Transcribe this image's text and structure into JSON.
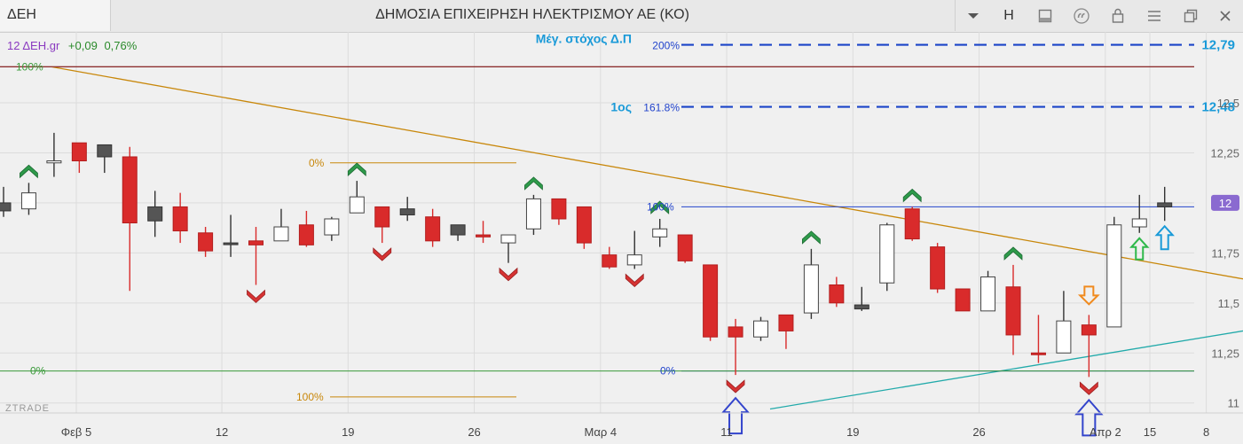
{
  "window": {
    "symbol": "ΔΕΗ",
    "title": "ΔΗΜΟΣΙΑ ΕΠΙΧΕΙΡΗΣΗ ΗΛΕΚΤΡΙΣΜΟΥ ΑΕ (ΚΟ)",
    "toolbar_letter": "H",
    "toolbar_icons": [
      "chevron-down-icon",
      "panel-icon",
      "quote-icon",
      "lock-icon",
      "menu-icon",
      "restore-icon",
      "close-icon"
    ]
  },
  "chart_header": {
    "ticker": "12 ΔΕΗ.gr",
    "change": "+0,09",
    "change_pct": "0,76%"
  },
  "watermark": "ZTRADE",
  "colors": {
    "bull_fill": "#ffffff",
    "bear": "#d92b2b",
    "neutral": "#555555",
    "trendline": "#c8870a",
    "support": "#22aaaa",
    "fib_blue": "#2244cc",
    "dashed_target": "#1a44c8",
    "target_text": "#1a9ad8",
    "fib_green": "#3a9a3a",
    "fib_orange": "#c8870a",
    "resistance": "#8a2b2b"
  },
  "chart_data": {
    "type": "candlestick",
    "ylim": [
      10.95,
      12.85
    ],
    "yticks": [
      "11",
      "11,25",
      "11,5",
      "11,75",
      "12",
      "12,25",
      "12,5"
    ],
    "last_price_label": "12",
    "last_price": 12.0,
    "xticks": [
      "Φεβ 5",
      "12",
      "19",
      "26",
      "Μαρ 4",
      "11",
      "19",
      "26",
      "Απρ 2",
      "8",
      "15"
    ],
    "candles": [
      {
        "o": 12.0,
        "h": 12.08,
        "l": 11.93,
        "c": 11.96,
        "t": "neutral"
      },
      {
        "o": 11.97,
        "h": 12.1,
        "l": 11.94,
        "c": 12.05,
        "t": "bull"
      },
      {
        "o": 12.2,
        "h": 12.35,
        "l": 12.13,
        "c": 12.21,
        "t": "bull"
      },
      {
        "o": 12.3,
        "h": 12.3,
        "l": 12.15,
        "c": 12.21,
        "t": "bear"
      },
      {
        "o": 12.29,
        "h": 12.29,
        "l": 12.15,
        "c": 12.23,
        "t": "neutral"
      },
      {
        "o": 12.23,
        "h": 12.28,
        "l": 11.56,
        "c": 11.9,
        "t": "bear"
      },
      {
        "o": 11.91,
        "h": 12.06,
        "l": 11.83,
        "c": 11.98,
        "t": "neutral"
      },
      {
        "o": 11.98,
        "h": 12.05,
        "l": 11.8,
        "c": 11.86,
        "t": "bear"
      },
      {
        "o": 11.85,
        "h": 11.88,
        "l": 11.73,
        "c": 11.76,
        "t": "bear"
      },
      {
        "o": 11.8,
        "h": 11.94,
        "l": 11.73,
        "c": 11.8,
        "t": "neutral"
      },
      {
        "o": 11.81,
        "h": 11.88,
        "l": 11.59,
        "c": 11.79,
        "t": "bear"
      },
      {
        "o": 11.81,
        "h": 11.97,
        "l": 11.81,
        "c": 11.88,
        "t": "bull"
      },
      {
        "o": 11.89,
        "h": 11.96,
        "l": 11.78,
        "c": 11.79,
        "t": "bear"
      },
      {
        "o": 11.84,
        "h": 11.93,
        "l": 11.81,
        "c": 11.92,
        "t": "bull"
      },
      {
        "o": 11.95,
        "h": 12.11,
        "l": 11.95,
        "c": 12.03,
        "t": "bull"
      },
      {
        "o": 11.98,
        "h": 11.98,
        "l": 11.8,
        "c": 11.88,
        "t": "bear"
      },
      {
        "o": 11.97,
        "h": 12.03,
        "l": 11.91,
        "c": 11.94,
        "t": "neutral"
      },
      {
        "o": 11.93,
        "h": 11.97,
        "l": 11.78,
        "c": 11.81,
        "t": "bear"
      },
      {
        "o": 11.89,
        "h": 11.89,
        "l": 11.81,
        "c": 11.84,
        "t": "neutral"
      },
      {
        "o": 11.84,
        "h": 11.91,
        "l": 11.8,
        "c": 11.83,
        "t": "bear"
      },
      {
        "o": 11.8,
        "h": 11.84,
        "l": 11.7,
        "c": 11.84,
        "t": "bull"
      },
      {
        "o": 11.87,
        "h": 12.04,
        "l": 11.84,
        "c": 12.02,
        "t": "bull"
      },
      {
        "o": 12.02,
        "h": 12.02,
        "l": 11.89,
        "c": 11.92,
        "t": "bear"
      },
      {
        "o": 11.98,
        "h": 11.98,
        "l": 11.77,
        "c": 11.8,
        "t": "bear"
      },
      {
        "o": 11.74,
        "h": 11.78,
        "l": 11.67,
        "c": 11.68,
        "t": "bear"
      },
      {
        "o": 11.69,
        "h": 11.86,
        "l": 11.67,
        "c": 11.74,
        "t": "bull"
      },
      {
        "o": 11.83,
        "h": 11.92,
        "l": 11.78,
        "c": 11.87,
        "t": "bull"
      },
      {
        "o": 11.84,
        "h": 11.84,
        "l": 11.7,
        "c": 11.71,
        "t": "bear"
      },
      {
        "o": 11.69,
        "h": 11.69,
        "l": 11.31,
        "c": 11.33,
        "t": "bear"
      },
      {
        "o": 11.38,
        "h": 11.42,
        "l": 11.14,
        "c": 11.33,
        "t": "bear"
      },
      {
        "o": 11.33,
        "h": 11.43,
        "l": 11.31,
        "c": 11.41,
        "t": "bull"
      },
      {
        "o": 11.44,
        "h": 11.44,
        "l": 11.27,
        "c": 11.36,
        "t": "bear"
      },
      {
        "o": 11.45,
        "h": 11.77,
        "l": 11.42,
        "c": 11.69,
        "t": "bull"
      },
      {
        "o": 11.59,
        "h": 11.63,
        "l": 11.48,
        "c": 11.5,
        "t": "bear"
      },
      {
        "o": 11.47,
        "h": 11.58,
        "l": 11.46,
        "c": 11.49,
        "t": "neutral"
      },
      {
        "o": 11.6,
        "h": 11.9,
        "l": 11.56,
        "c": 11.89,
        "t": "bull"
      },
      {
        "o": 11.97,
        "h": 11.98,
        "l": 11.81,
        "c": 11.82,
        "t": "bear"
      },
      {
        "o": 11.78,
        "h": 11.8,
        "l": 11.55,
        "c": 11.57,
        "t": "bear"
      },
      {
        "o": 11.57,
        "h": 11.57,
        "l": 11.46,
        "c": 11.46,
        "t": "bear"
      },
      {
        "o": 11.46,
        "h": 11.66,
        "l": 11.46,
        "c": 11.63,
        "t": "bull"
      },
      {
        "o": 11.58,
        "h": 11.69,
        "l": 11.24,
        "c": 11.34,
        "t": "bear"
      },
      {
        "o": 11.25,
        "h": 11.44,
        "l": 11.2,
        "c": 11.25,
        "t": "bear"
      },
      {
        "o": 11.25,
        "h": 11.56,
        "l": 11.25,
        "c": 11.41,
        "t": "bull"
      },
      {
        "o": 11.39,
        "h": 11.44,
        "l": 11.13,
        "c": 11.34,
        "t": "bear"
      },
      {
        "o": 11.38,
        "h": 11.93,
        "l": 11.38,
        "c": 11.89,
        "t": "bull"
      },
      {
        "o": 11.88,
        "h": 12.04,
        "l": 11.85,
        "c": 11.92,
        "t": "bull"
      },
      {
        "o": 11.98,
        "h": 12.08,
        "l": 11.91,
        "c": 12.0,
        "t": "neutral"
      }
    ],
    "lines": [
      {
        "name": "resistance",
        "from": [
          0,
          12.68
        ],
        "to": [
          51,
          12.68
        ]
      },
      {
        "name": "downtrend",
        "from": [
          2,
          12.68
        ],
        "to": [
          51,
          11.62
        ]
      },
      {
        "name": "support",
        "from": [
          34,
          10.97
        ],
        "to": [
          51,
          11.36
        ]
      },
      {
        "name": "fib-blue-100",
        "from": [
          29,
          11.98
        ],
        "to": [
          51,
          11.98
        ],
        "label": "100%"
      },
      {
        "name": "fib-blue-0",
        "from": [
          29,
          11.16
        ],
        "to": [
          51,
          11.16
        ],
        "label": "0%"
      },
      {
        "name": "fib-green-100",
        "from": [
          0,
          12.68
        ],
        "to": [
          51,
          12.68
        ],
        "label": "100%"
      },
      {
        "name": "fib-green-0",
        "from": [
          0,
          11.16
        ],
        "to": [
          51,
          11.16
        ],
        "label": "0%"
      },
      {
        "name": "fib-orange-0",
        "from": [
          14,
          12.2
        ],
        "to": [
          22,
          12.2
        ],
        "label": "0%"
      },
      {
        "name": "fib-orange-100",
        "from": [
          14,
          11.03
        ],
        "to": [
          22,
          11.03
        ],
        "label": "100%"
      },
      {
        "name": "target-200",
        "from": [
          29,
          12.79
        ],
        "to": [
          51,
          12.79
        ],
        "label": "200%"
      },
      {
        "name": "target-161",
        "from": [
          29,
          12.48
        ],
        "to": [
          51,
          12.48
        ],
        "label": "161.8%"
      }
    ],
    "targets": [
      {
        "pct": "200%",
        "caption": "Μέγ. στόχος Δ.Π",
        "value": "12,79",
        "y": 12.79
      },
      {
        "pct": "161.8%",
        "caption": "1ος",
        "value": "12,48",
        "y": 12.48
      }
    ],
    "markers": {
      "up_chevrons": [
        1,
        14,
        21,
        26,
        32,
        36,
        40
      ],
      "down_chevrons": [
        10,
        15,
        20,
        25,
        29,
        43
      ],
      "big_blue_arrows": [
        29,
        43
      ],
      "orange_down_arrow": 43,
      "green_up_arrow": 45,
      "blue_up_arrow": 46
    }
  }
}
